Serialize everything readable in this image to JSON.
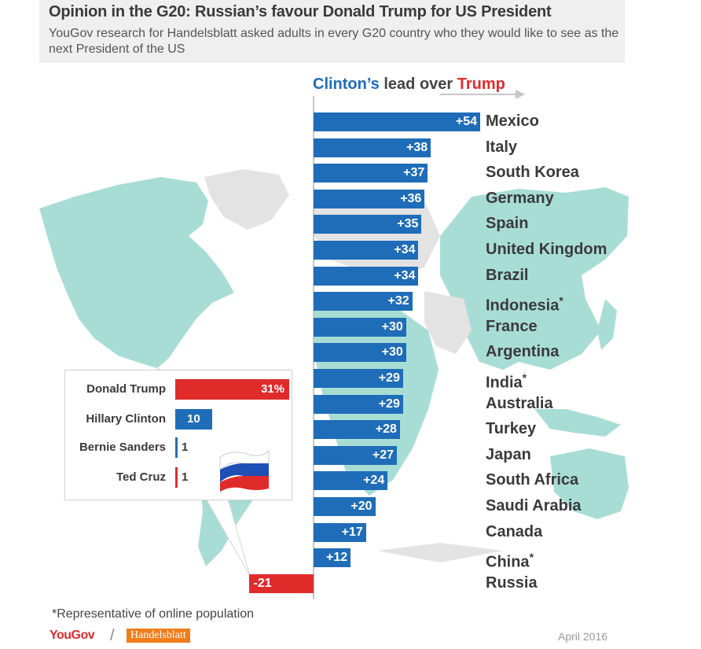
{
  "header": {
    "title": "Opinion in the G20: Russian’s favour Donald Trump for US President",
    "subtitle": "YouGov research for Handelsblatt asked adults in every G20 country who they would like to see as the next President of the US"
  },
  "colors": {
    "clinton": "#1f6db8",
    "trump": "#e02b2b",
    "map": "#a8ddd6",
    "map_grey": "#e3e3e3"
  },
  "chart_data": [
    {
      "type": "bar",
      "title_parts": [
        "Clinton’s",
        " lead over ",
        "Trump"
      ],
      "categories": [
        "Mexico",
        "Italy",
        "South Korea",
        "Germany",
        "Spain",
        "United Kingdom",
        "Brazil",
        "Indonesia",
        "France",
        "Argentina",
        "India",
        "Australia",
        "Turkey",
        "Japan",
        "South Africa",
        "Saudi Arabia",
        "Canada",
        "China",
        "Russia"
      ],
      "category_footnote": [
        false,
        false,
        false,
        false,
        false,
        false,
        false,
        true,
        false,
        false,
        true,
        false,
        false,
        false,
        false,
        false,
        false,
        true,
        false
      ],
      "values": [
        54,
        38,
        37,
        36,
        35,
        34,
        34,
        32,
        30,
        30,
        29,
        29,
        28,
        27,
        24,
        20,
        17,
        12,
        -21
      ],
      "labels": [
        "+54",
        "+38",
        "+37",
        "+36",
        "+35",
        "+34",
        "+34",
        "+32",
        "+30",
        "+30",
        "+29",
        "+29",
        "+28",
        "+27",
        "+24",
        "+20",
        "+17",
        "+12",
        "-21"
      ],
      "footnote_mark": "*"
    },
    {
      "type": "bar",
      "categories": [
        "Donald Trump",
        "Hillary Clinton",
        "Bernie Sanders",
        "Ted Cruz"
      ],
      "values": [
        31,
        10,
        1,
        1
      ],
      "labels": [
        "31%",
        "10",
        "1",
        "1"
      ]
    }
  ],
  "footer": {
    "footnote": "*Representative of online population",
    "logo_yougov": "YouGov",
    "logo_separator": "/",
    "logo_handelsblatt": "Handelsblatt",
    "date": "April 2016"
  }
}
